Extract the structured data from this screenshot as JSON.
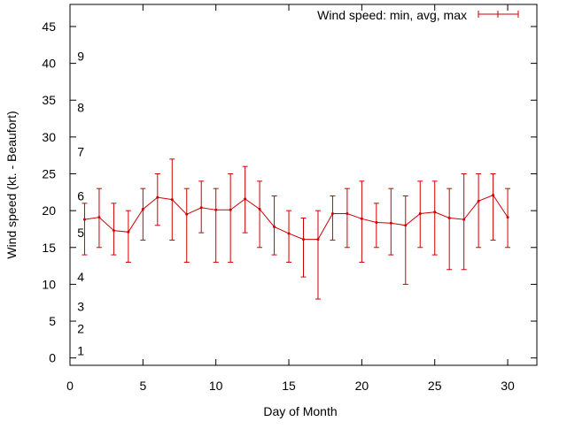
{
  "chart_data": {
    "type": "line",
    "title": "",
    "xlabel": "Day of Month",
    "ylabel": "Wind speed (kt. - Beaufort)",
    "xlim": [
      0,
      32
    ],
    "ylim": [
      -1,
      48
    ],
    "x_ticks": [
      0,
      5,
      10,
      15,
      20,
      25,
      30
    ],
    "y_ticks": [
      0,
      5,
      10,
      15,
      20,
      25,
      30,
      35,
      40,
      45
    ],
    "grid": false,
    "legend": "top-right",
    "beaufort_labels": [
      {
        "label": "1",
        "y": 1
      },
      {
        "label": "2",
        "y": 4
      },
      {
        "label": "3",
        "y": 7
      },
      {
        "label": "4",
        "y": 11
      },
      {
        "label": "5",
        "y": 17
      },
      {
        "label": "6",
        "y": 22
      },
      {
        "label": "7",
        "y": 28
      },
      {
        "label": "8",
        "y": 34
      },
      {
        "label": "9",
        "y": 41
      }
    ],
    "series": [
      {
        "name": "Wind speed: min, avg, max",
        "color": "#cc0000",
        "x": [
          1,
          2,
          3,
          4,
          5,
          6,
          7,
          8,
          9,
          10,
          11,
          12,
          13,
          14,
          15,
          16,
          17,
          18,
          19,
          20,
          21,
          22,
          23,
          24,
          25,
          26,
          27,
          28,
          29,
          30
        ],
        "avg": [
          18.8,
          19.1,
          17.3,
          17.1,
          20.2,
          21.8,
          21.5,
          19.5,
          20.4,
          20.1,
          20.1,
          21.6,
          20.2,
          17.8,
          16.9,
          16.1,
          16.1,
          19.6,
          19.6,
          18.9,
          18.4,
          18.3,
          18.0,
          19.6,
          19.8,
          19.0,
          18.8,
          21.3,
          22.1,
          19.1
        ],
        "min": [
          14,
          15,
          14,
          13,
          16,
          18,
          16,
          13,
          17,
          13,
          13,
          17,
          15,
          14,
          13,
          11,
          8,
          16,
          15,
          13,
          15,
          14,
          10,
          15,
          14,
          12,
          12,
          15,
          16,
          15
        ],
        "max": [
          21,
          23,
          21,
          20,
          23,
          25,
          27,
          23,
          24,
          23,
          25,
          26,
          24,
          22,
          20,
          19,
          20,
          22,
          23,
          24,
          21,
          23,
          22,
          24,
          24,
          23,
          25,
          25,
          25,
          23
        ]
      }
    ]
  }
}
